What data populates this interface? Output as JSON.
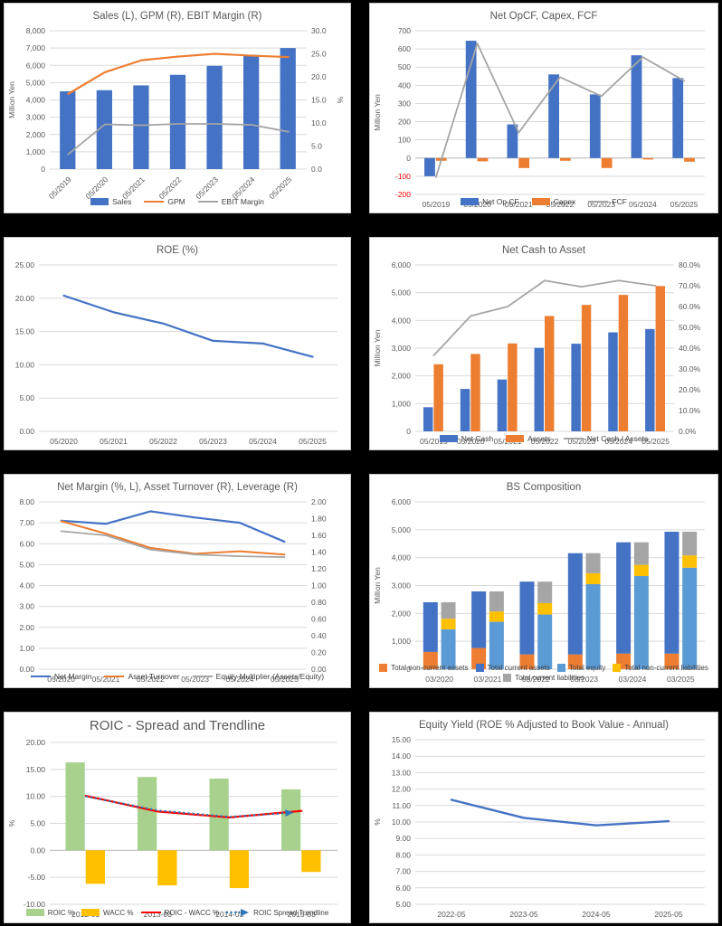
{
  "colors": {
    "background": "#000000",
    "panel": "#ffffff",
    "grid": "#D9D9D9",
    "text": "#595959",
    "blue": "#4472C4",
    "orange": "#ED7D31",
    "gray": "#A5A5A5",
    "light_blue": "#5B9BD5",
    "gold": "#FFC000",
    "green": "#A9D18E",
    "red": "#FF0000",
    "trend_blue": "#2E75B6"
  },
  "charts": [
    {
      "title": "Sales (L), GPM (R), EBIT Margin (R)",
      "type": "bar-line-combo",
      "categories": [
        "05/2019",
        "05/2020",
        "05/2021",
        "05/2022",
        "05/2023",
        "05/2024",
        "05/2025"
      ],
      "x_rotate": true,
      "left_axis": {
        "title": "Million Yen",
        "min": 0,
        "max": 8000,
        "step": 1000,
        "format": "comma"
      },
      "right_axis": {
        "title": "%",
        "min": 0,
        "max": 30,
        "step": 5,
        "format": "dec1"
      },
      "series": [
        {
          "name": "Sales",
          "type": "bar",
          "axis": "left",
          "color": "#4472C4",
          "values": [
            4500,
            4560,
            4840,
            5450,
            5970,
            6600,
            7000
          ]
        },
        {
          "name": "GPM",
          "type": "line",
          "axis": "right",
          "color": "#ED7D31",
          "width": 2.2,
          "values": [
            16.3,
            21.0,
            23.6,
            24.4,
            25.0,
            24.6,
            24.3
          ]
        },
        {
          "name": "EBIT Margin",
          "type": "line",
          "axis": "right",
          "color": "#A5A5A5",
          "width": 1.8,
          "values": [
            3.2,
            9.7,
            9.5,
            9.8,
            9.8,
            9.6,
            8.1
          ]
        }
      ]
    },
    {
      "title": "Net OpCF, Capex, FCF",
      "type": "bar-line-combo",
      "categories": [
        "05/2019",
        "05/2020",
        "05/2021",
        "05/2022",
        "05/2023",
        "05/2024",
        "05/2025"
      ],
      "negative_red": true,
      "zero_axis": true,
      "left_axis": {
        "title": "Million Yen",
        "min": -200,
        "max": 700,
        "step": 100,
        "format": "int"
      },
      "series": [
        {
          "name": "Net Op CF",
          "type": "bar",
          "axis": "left",
          "color": "#4472C4",
          "values": [
            -100,
            645,
            185,
            460,
            350,
            565,
            440
          ]
        },
        {
          "name": "Capex",
          "type": "bar",
          "axis": "left",
          "color": "#ED7D31",
          "values": [
            -15,
            -18,
            -55,
            -15,
            -55,
            -8,
            -20
          ]
        },
        {
          "name": "FCF",
          "type": "line",
          "axis": "left",
          "color": "#A5A5A5",
          "width": 1.8,
          "values": [
            -105,
            630,
            140,
            445,
            340,
            555,
            425
          ]
        }
      ]
    },
    {
      "title": "ROE (%)",
      "type": "line",
      "categories": [
        "05/2020",
        "05/2021",
        "05/2022",
        "05/2023",
        "05/2024",
        "05/2025"
      ],
      "left_axis": {
        "title": "",
        "min": 0,
        "max": 25,
        "step": 5,
        "format": "dec2"
      },
      "series": [
        {
          "name": "ROE",
          "type": "line",
          "axis": "left",
          "color": "#4472C4",
          "width": 2.2,
          "legend": false,
          "values": [
            20.4,
            17.9,
            16.2,
            13.6,
            13.2,
            11.2
          ]
        }
      ]
    },
    {
      "title": "Net Cash to Asset",
      "type": "bar-line-combo",
      "categories": [
        "05/2019",
        "05/2020",
        "05/2021",
        "05/2022",
        "05/2023",
        "05/2024",
        "05/2025"
      ],
      "left_axis": {
        "title": "Million Yen",
        "min": 0,
        "max": 6000,
        "step": 1000,
        "format": "comma"
      },
      "right_axis": {
        "title": "",
        "min": 0,
        "max": 80,
        "step": 10,
        "format": "pct1"
      },
      "series": [
        {
          "name": "Net Cash",
          "type": "bar",
          "axis": "left",
          "color": "#4472C4",
          "values": [
            870,
            1530,
            1870,
            3010,
            3160,
            3570,
            3690
          ]
        },
        {
          "name": "Assets",
          "type": "bar",
          "axis": "left",
          "color": "#ED7D31",
          "values": [
            2420,
            2790,
            3170,
            4160,
            4560,
            4920,
            5240
          ]
        },
        {
          "name": "Net Cash / Assets",
          "type": "line",
          "axis": "right",
          "color": "#A5A5A5",
          "width": 1.8,
          "values": [
            36.5,
            55.5,
            60.0,
            72.5,
            69.5,
            72.5,
            70.0
          ]
        }
      ]
    },
    {
      "title": "Net Margin (%, L), Asset Turnover (R), Leverage (R)",
      "type": "line",
      "categories": [
        "05/2020",
        "05/2021",
        "05/2022",
        "05/2023",
        "05/2024",
        "05/2025"
      ],
      "left_axis": {
        "title": "",
        "min": 0,
        "max": 8,
        "step": 1,
        "format": "dec2"
      },
      "right_axis": {
        "title": "",
        "min": 0,
        "max": 2,
        "step": 0.2,
        "format": "dec2"
      },
      "series": [
        {
          "name": "Net Margin",
          "type": "line",
          "axis": "left",
          "color": "#4472C4",
          "width": 2.2,
          "values": [
            7.1,
            6.95,
            7.55,
            7.25,
            7.0,
            6.1
          ]
        },
        {
          "name": "Asset Turnover",
          "type": "line",
          "axis": "right",
          "color": "#ED7D31",
          "width": 2,
          "values": [
            1.77,
            1.62,
            1.45,
            1.38,
            1.41,
            1.37
          ]
        },
        {
          "name": "Equity Multiplier (Assets/Equity)",
          "type": "line",
          "axis": "right",
          "color": "#A5A5A5",
          "width": 1.8,
          "values": [
            1.65,
            1.6,
            1.43,
            1.37,
            1.35,
            1.34
          ]
        }
      ]
    },
    {
      "title": "BS Composition",
      "type": "stacked-bar",
      "categories": [
        "03/2020",
        "03/2021",
        "03/2022",
        "03/2023",
        "03/2024",
        "03/2025"
      ],
      "legend_square": true,
      "left_axis": {
        "title": "Million Yen",
        "min": 0,
        "max": 6000,
        "step": 1000,
        "format": "comma"
      },
      "series": [
        {
          "name": "Total non-current assets",
          "type": "stack",
          "stack": "assets",
          "axis": "left",
          "color": "#ED7D31",
          "values": [
            620,
            760,
            530,
            530,
            560,
            560
          ]
        },
        {
          "name": "Total current assets",
          "type": "stack",
          "stack": "assets",
          "axis": "left",
          "color": "#4472C4",
          "values": [
            1780,
            2030,
            2610,
            3630,
            3990,
            4370
          ]
        },
        {
          "name": "Total equity",
          "type": "stack",
          "stack": "capital",
          "axis": "left",
          "color": "#5B9BD5",
          "values": [
            1430,
            1700,
            1960,
            3050,
            3340,
            3640
          ]
        },
        {
          "name": "Total non-current liabilities",
          "type": "stack",
          "stack": "capital",
          "axis": "left",
          "color": "#FFC000",
          "values": [
            380,
            370,
            410,
            390,
            400,
            440
          ]
        },
        {
          "name": "Total current liabilities",
          "type": "stack",
          "stack": "capital",
          "axis": "left",
          "color": "#A5A5A5",
          "values": [
            590,
            720,
            770,
            720,
            810,
            850
          ]
        }
      ]
    },
    {
      "title": "ROIC - Spread and Trendline",
      "type": "bar-line-combo",
      "categories": [
        "2012-03",
        "2013-03",
        "2014-03",
        "2015-03"
      ],
      "zero_axis": true,
      "left_axis": {
        "title": "%",
        "min": -10,
        "max": 20,
        "step": 5,
        "format": "dec2"
      },
      "series": [
        {
          "name": "ROIC %",
          "type": "bar",
          "axis": "left",
          "color": "#A9D18E",
          "values": [
            16.3,
            13.6,
            13.3,
            11.3
          ]
        },
        {
          "name": "WACC %",
          "type": "bar",
          "axis": "left",
          "color": "#FFC000",
          "values": [
            -6.2,
            -6.5,
            -7.0,
            -4.0
          ]
        },
        {
          "name": "ROIC - WACC %",
          "type": "line",
          "axis": "left",
          "color": "#FF0000",
          "width": 2.2,
          "values": [
            10.1,
            7.2,
            6.1,
            7.3
          ]
        },
        {
          "name": "ROIC Spread Trendline",
          "type": "trendline",
          "axis": "left",
          "color": "#2E75B6",
          "width": 2.2,
          "values": [
            10.0,
            7.4,
            6.2,
            7.0
          ]
        }
      ]
    },
    {
      "title": "Equity Yield (ROE % Adjusted to Book Value - Annual)",
      "type": "line",
      "categories": [
        "2022-05",
        "2023-05",
        "2024-05",
        "2025-05"
      ],
      "left_axis": {
        "title": "%",
        "min": 5,
        "max": 15,
        "step": 1,
        "format": "dec2"
      },
      "series": [
        {
          "name": "Equity Yield",
          "type": "line",
          "axis": "left",
          "color": "#4472C4",
          "width": 2.4,
          "legend": false,
          "values": [
            11.35,
            10.25,
            9.8,
            10.05
          ]
        }
      ]
    }
  ],
  "chart_data": [
    {
      "type": "bar",
      "title": "Sales (L), GPM (R), EBIT Margin (R)",
      "categories": [
        "05/2019",
        "05/2020",
        "05/2021",
        "05/2022",
        "05/2023",
        "05/2024",
        "05/2025"
      ],
      "ylabel": "Million Yen",
      "y2label": "%",
      "ylim": [
        0,
        8000
      ],
      "y2lim": [
        0,
        30
      ],
      "legend_position": "bottom",
      "grid": true,
      "series": [
        {
          "name": "Sales",
          "values": [
            4500,
            4560,
            4840,
            5450,
            5970,
            6600,
            7000
          ]
        },
        {
          "name": "GPM",
          "values": [
            16.3,
            21.0,
            23.6,
            24.4,
            25.0,
            24.6,
            24.3
          ]
        },
        {
          "name": "EBIT Margin",
          "values": [
            3.2,
            9.7,
            9.5,
            9.8,
            9.8,
            9.6,
            8.1
          ]
        }
      ]
    },
    {
      "type": "bar",
      "title": "Net OpCF, Capex, FCF",
      "categories": [
        "05/2019",
        "05/2020",
        "05/2021",
        "05/2022",
        "05/2023",
        "05/2024",
        "05/2025"
      ],
      "ylabel": "Million Yen",
      "ylim": [
        -200,
        700
      ],
      "legend_position": "bottom",
      "grid": true,
      "series": [
        {
          "name": "Net Op CF",
          "values": [
            -100,
            645,
            185,
            460,
            350,
            565,
            440
          ]
        },
        {
          "name": "Capex",
          "values": [
            -15,
            -18,
            -55,
            -15,
            -55,
            -8,
            -20
          ]
        },
        {
          "name": "FCF",
          "values": [
            -105,
            630,
            140,
            445,
            340,
            555,
            425
          ]
        }
      ]
    },
    {
      "type": "line",
      "title": "ROE (%)",
      "categories": [
        "05/2020",
        "05/2021",
        "05/2022",
        "05/2023",
        "05/2024",
        "05/2025"
      ],
      "ylim": [
        0,
        25
      ],
      "grid": true,
      "series": [
        {
          "name": "ROE",
          "values": [
            20.4,
            17.9,
            16.2,
            13.6,
            13.2,
            11.2
          ]
        }
      ]
    },
    {
      "type": "bar",
      "title": "Net Cash to Asset",
      "categories": [
        "05/2019",
        "05/2020",
        "05/2021",
        "05/2022",
        "05/2023",
        "05/2024",
        "05/2025"
      ],
      "ylabel": "Million Yen",
      "ylim": [
        0,
        6000
      ],
      "y2lim": [
        0,
        80
      ],
      "legend_position": "bottom",
      "grid": true,
      "series": [
        {
          "name": "Net Cash",
          "values": [
            870,
            1530,
            1870,
            3010,
            3160,
            3570,
            3690
          ]
        },
        {
          "name": "Assets",
          "values": [
            2420,
            2790,
            3170,
            4160,
            4560,
            4920,
            5240
          ]
        },
        {
          "name": "Net Cash / Assets (%)",
          "values": [
            36.5,
            55.5,
            60.0,
            72.5,
            69.5,
            72.5,
            70.0
          ]
        }
      ]
    },
    {
      "type": "line",
      "title": "Net Margin (%, L), Asset Turnover (R), Leverage (R)",
      "categories": [
        "05/2020",
        "05/2021",
        "05/2022",
        "05/2023",
        "05/2024",
        "05/2025"
      ],
      "ylim": [
        0,
        8
      ],
      "y2lim": [
        0,
        2
      ],
      "legend_position": "bottom",
      "grid": true,
      "series": [
        {
          "name": "Net Margin",
          "values": [
            7.1,
            6.95,
            7.55,
            7.25,
            7.0,
            6.1
          ]
        },
        {
          "name": "Asset Turnover",
          "values": [
            1.77,
            1.62,
            1.45,
            1.38,
            1.41,
            1.37
          ]
        },
        {
          "name": "Equity Multiplier (Assets/Equity)",
          "values": [
            1.65,
            1.6,
            1.43,
            1.37,
            1.35,
            1.34
          ]
        }
      ]
    },
    {
      "type": "bar",
      "title": "BS Composition",
      "categories": [
        "03/2020",
        "03/2021",
        "03/2022",
        "03/2023",
        "03/2024",
        "03/2025"
      ],
      "ylabel": "Million Yen",
      "ylim": [
        0,
        6000
      ],
      "legend_position": "bottom",
      "grid": true,
      "series": [
        {
          "name": "Total non-current assets",
          "values": [
            620,
            760,
            530,
            530,
            560,
            560
          ]
        },
        {
          "name": "Total current assets",
          "values": [
            1780,
            2030,
            2610,
            3630,
            3990,
            4370
          ]
        },
        {
          "name": "Total equity",
          "values": [
            1430,
            1700,
            1960,
            3050,
            3340,
            3640
          ]
        },
        {
          "name": "Total non-current liabilities",
          "values": [
            380,
            370,
            410,
            390,
            400,
            440
          ]
        },
        {
          "name": "Total current liabilities",
          "values": [
            590,
            720,
            770,
            720,
            810,
            850
          ]
        }
      ]
    },
    {
      "type": "bar",
      "title": "ROIC - Spread and Trendline",
      "categories": [
        "2012-03",
        "2013-03",
        "2014-03",
        "2015-03"
      ],
      "ylabel": "%",
      "ylim": [
        -10,
        20
      ],
      "legend_position": "bottom",
      "grid": true,
      "series": [
        {
          "name": "ROIC %",
          "values": [
            16.3,
            13.6,
            13.3,
            11.3
          ]
        },
        {
          "name": "WACC %",
          "values": [
            -6.2,
            -6.5,
            -7.0,
            -4.0
          ]
        },
        {
          "name": "ROIC - WACC %",
          "values": [
            10.1,
            7.2,
            6.1,
            7.3
          ]
        },
        {
          "name": "ROIC Spread Trendline",
          "values": [
            10.0,
            7.4,
            6.2,
            7.0
          ]
        }
      ]
    },
    {
      "type": "line",
      "title": "Equity Yield (ROE % Adjusted to Book Value - Annual)",
      "categories": [
        "2022-05",
        "2023-05",
        "2024-05",
        "2025-05"
      ],
      "ylabel": "%",
      "ylim": [
        5,
        15
      ],
      "grid": true,
      "series": [
        {
          "name": "Equity Yield",
          "values": [
            11.35,
            10.25,
            9.8,
            10.05
          ]
        }
      ]
    }
  ]
}
